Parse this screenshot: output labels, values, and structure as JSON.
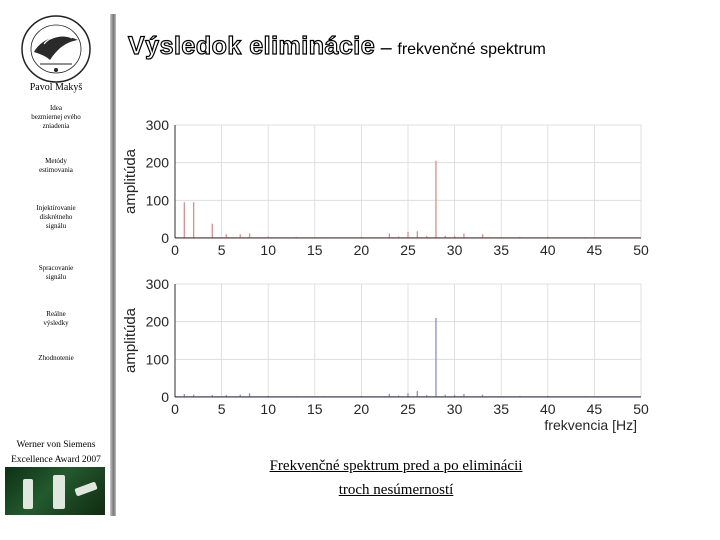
{
  "sidebar": {
    "author": "Pavol Makyš",
    "items": [
      {
        "label": "Idea\nbezmiernej evého\nzniadenia"
      },
      {
        "label": "Metódy\nestimovania"
      },
      {
        "label": "Injektírovanie\ndiskrétneho\nsignálu"
      },
      {
        "label": "Spracovanie\nsignálu"
      },
      {
        "label": "Reálne\nvýsledky"
      },
      {
        "label": "Zhodnotenie"
      }
    ],
    "award": "Werner von Siemens\nExcellence Award 2007"
  },
  "header": {
    "title_main": "Výsledok eliminácie",
    "title_dash": " – ",
    "title_sub": "frekvenčné spektrum"
  },
  "caption": "Frekvenčné spektrum pred a po eliminácii\ntroch nesúmerností",
  "colors": {
    "before": "#e08a8a",
    "after": "#8a8ad0",
    "grid": "#d9d9d9",
    "axis": "#000000"
  },
  "chart_data": [
    {
      "type": "line",
      "title": "",
      "xlabel": "",
      "ylabel": "amplitúda",
      "xlim": [
        0,
        50
      ],
      "ylim": [
        0,
        300
      ],
      "xticks": [
        "0",
        "5",
        "10",
        "15",
        "20",
        "25",
        "30",
        "35",
        "40",
        "45",
        "50"
      ],
      "yticks": [
        "0",
        "100",
        "200",
        "300"
      ],
      "grid": true,
      "series": [
        {
          "x": [
            1.0,
            2.0,
            4.0,
            5.5,
            7.0,
            8.0,
            10.0,
            13.0,
            16.0,
            20.0,
            23.0,
            24.0,
            25.0,
            26.0,
            27.0,
            28.0,
            29.0,
            30.0,
            31.0,
            33.0,
            37.0,
            40.0,
            44.0,
            47.0
          ],
          "y": [
            95,
            95,
            38,
            10,
            10,
            12,
            4,
            3,
            2,
            3,
            12,
            4,
            16,
            18,
            5,
            205,
            6,
            5,
            12,
            10,
            3,
            3,
            2,
            2
          ]
        }
      ]
    },
    {
      "type": "line",
      "title": "",
      "xlabel": "frekvencia [Hz]",
      "ylabel": "amplitúda",
      "xlim": [
        0,
        50
      ],
      "ylim": [
        0,
        300
      ],
      "xticks": [
        "0",
        "5",
        "10",
        "15",
        "20",
        "25",
        "30",
        "35",
        "40",
        "45",
        "50"
      ],
      "yticks": [
        "0",
        "100",
        "200",
        "300"
      ],
      "grid": true,
      "series": [
        {
          "x": [
            1.0,
            2.0,
            4.0,
            5.5,
            7.0,
            8.0,
            10.0,
            13.0,
            16.0,
            20.0,
            23.0,
            24.0,
            25.0,
            26.0,
            27.0,
            28.0,
            29.0,
            30.0,
            31.0,
            33.0,
            37.0,
            40.0,
            44.0,
            47.0
          ],
          "y": [
            8,
            6,
            5,
            5,
            6,
            10,
            3,
            2,
            2,
            3,
            8,
            4,
            10,
            16,
            5,
            210,
            6,
            5,
            8,
            6,
            3,
            3,
            2,
            2
          ]
        }
      ]
    }
  ]
}
